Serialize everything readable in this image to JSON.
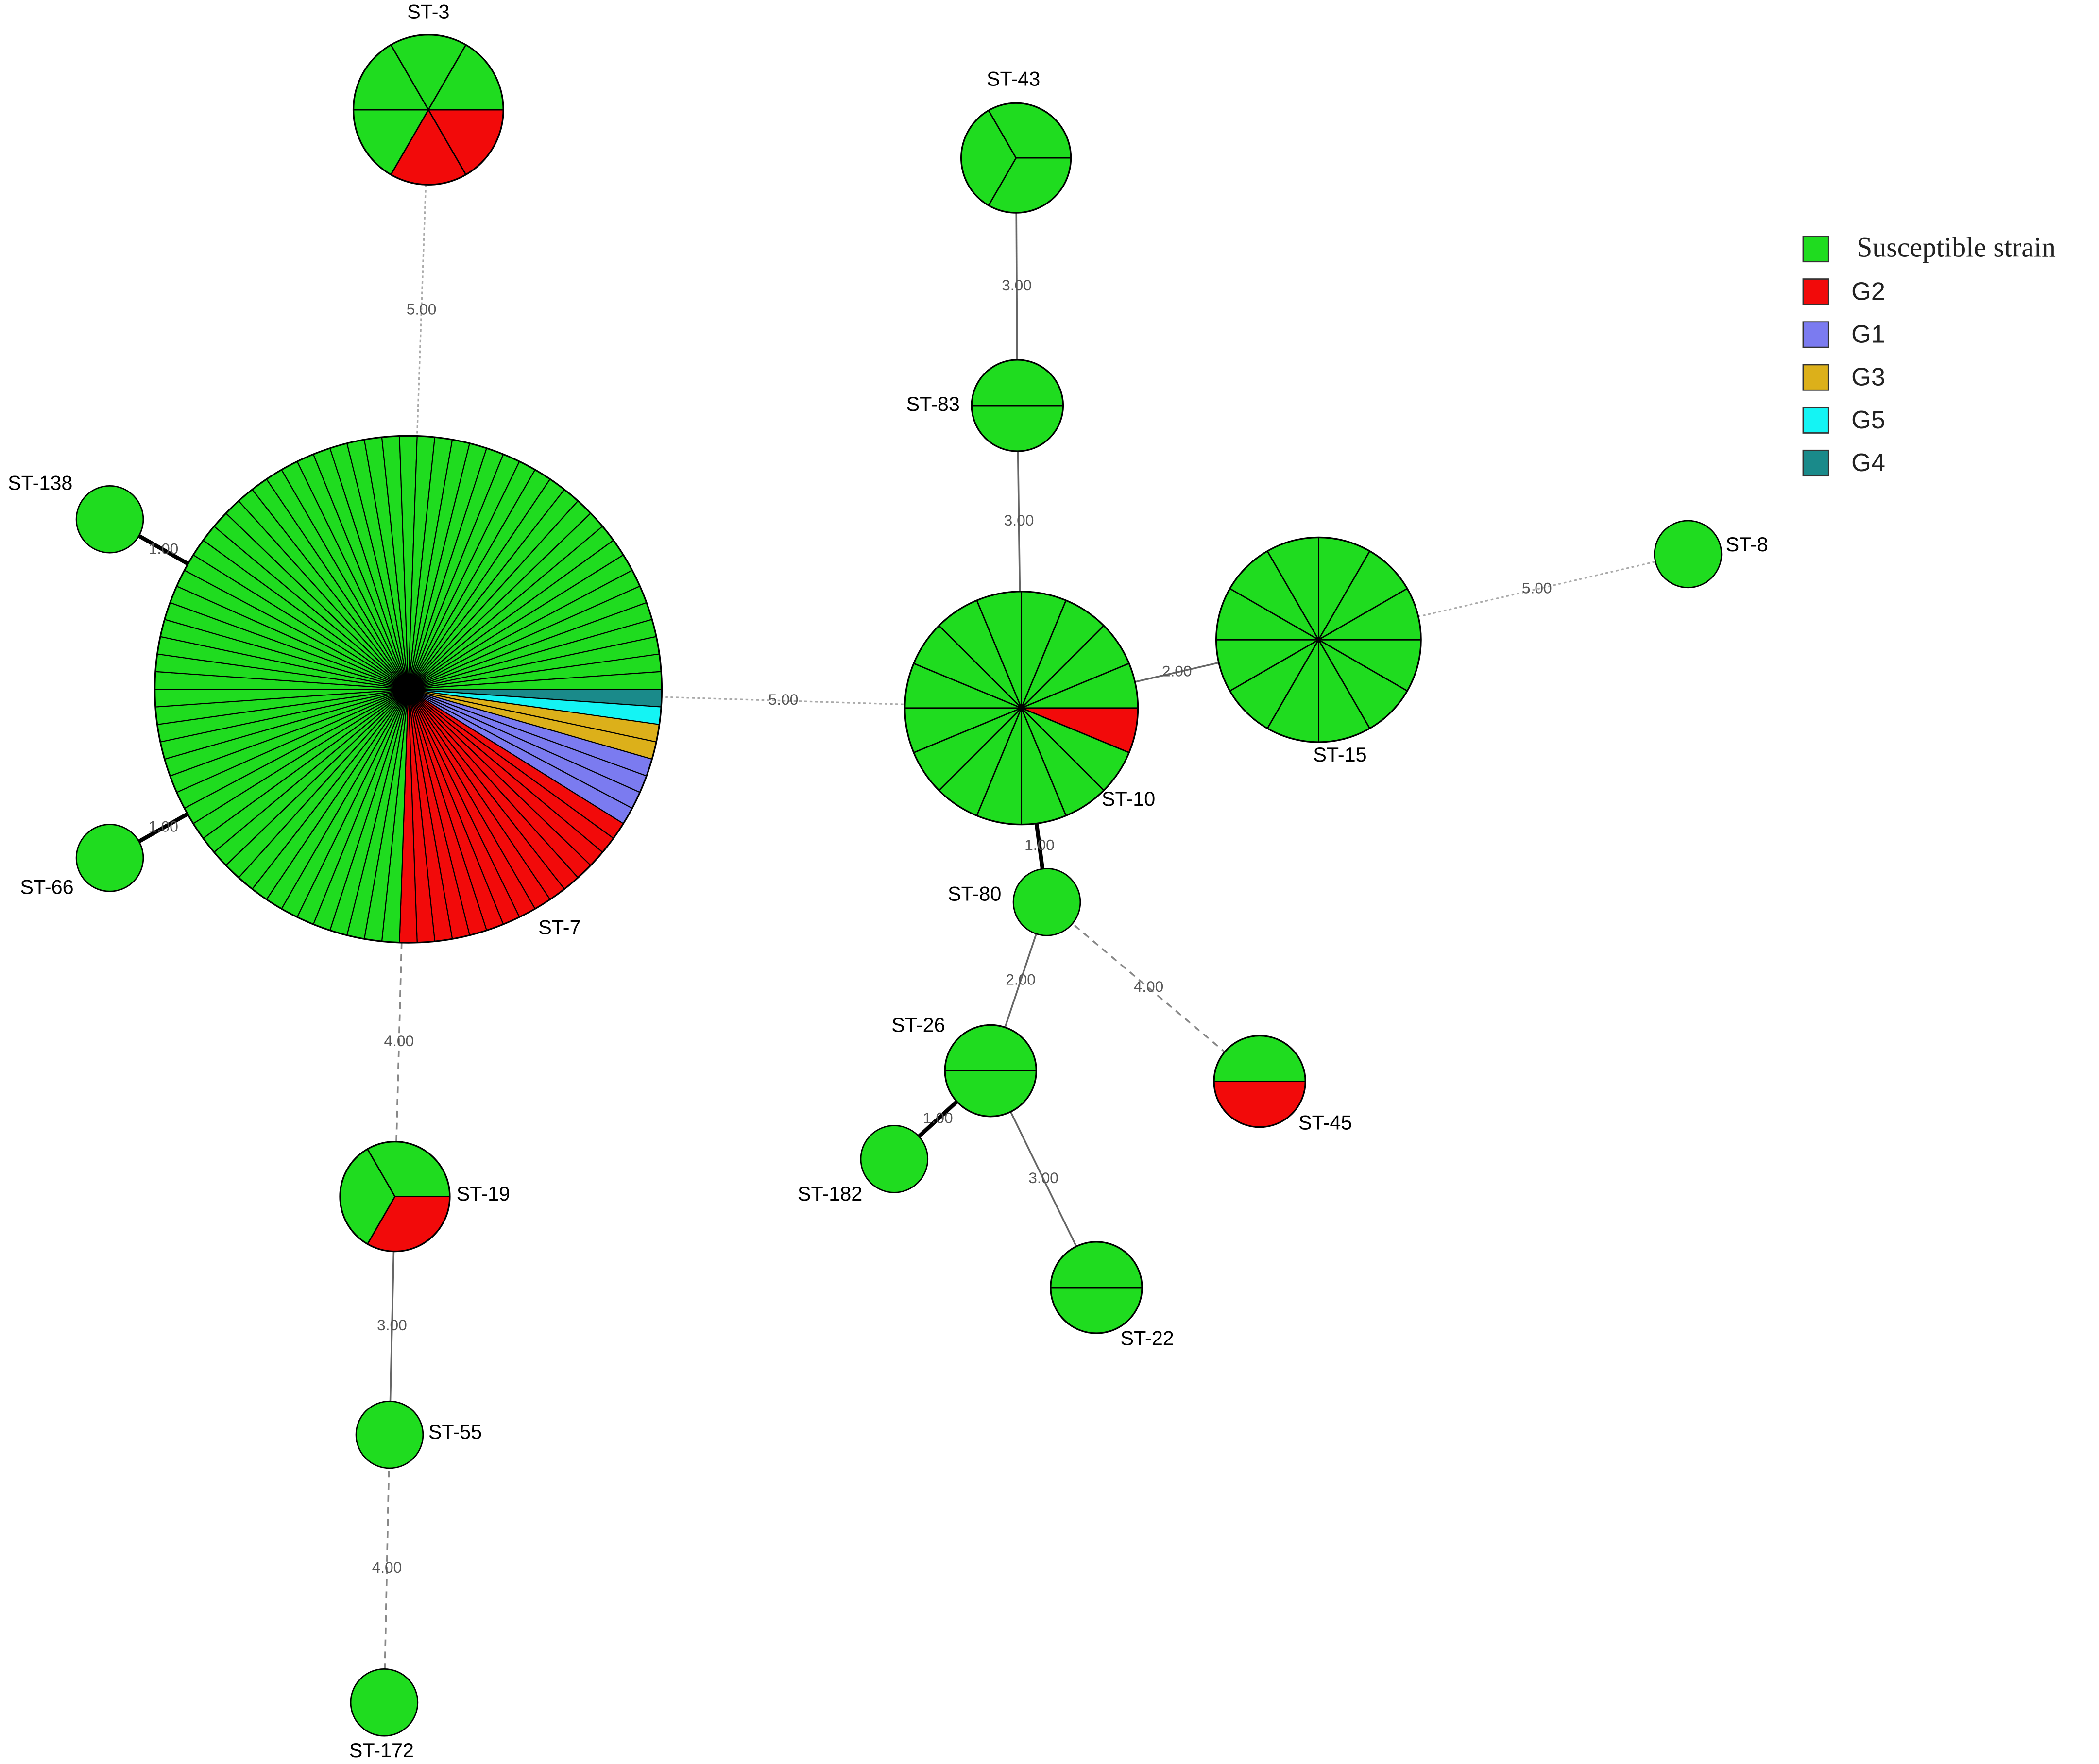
{
  "legend": [
    {
      "name": "Susceptible strain",
      "color": "#1fdc1f"
    },
    {
      "name": "G2",
      "color": "#f20a0a"
    },
    {
      "name": "G1",
      "color": "#7b7bf0"
    },
    {
      "name": "G3",
      "color": "#dcb01a"
    },
    {
      "name": "G5",
      "color": "#14f4f4"
    },
    {
      "name": "G4",
      "color": "#1a8a8a"
    }
  ],
  "nodes": [
    {
      "label": "ST-3",
      "counts": [
        4,
        2,
        0,
        0,
        0,
        0
      ]
    },
    {
      "label": "ST-43",
      "counts": [
        3,
        0,
        0,
        0,
        0,
        0
      ]
    },
    {
      "label": "ST-83",
      "counts": [
        2,
        0,
        0,
        0,
        0,
        0
      ]
    },
    {
      "label": "ST-7",
      "counts": [
        67,
        15,
        4,
        2,
        1,
        1
      ]
    },
    {
      "label": "ST-138",
      "counts": [
        1,
        0,
        0,
        0,
        0,
        0
      ]
    },
    {
      "label": "ST-66",
      "counts": [
        1,
        0,
        0,
        0,
        0,
        0
      ]
    },
    {
      "label": "ST-10",
      "counts": [
        15,
        1,
        0,
        0,
        0,
        0
      ]
    },
    {
      "label": "ST-15",
      "counts": [
        12,
        0,
        0,
        0,
        0,
        0
      ]
    },
    {
      "label": "ST-8",
      "counts": [
        1,
        0,
        0,
        0,
        0,
        0
      ]
    },
    {
      "label": "ST-80",
      "counts": [
        1,
        0,
        0,
        0,
        0,
        0
      ]
    },
    {
      "label": "ST-26",
      "counts": [
        2,
        0,
        0,
        0,
        0,
        0
      ]
    },
    {
      "label": "ST-45",
      "counts": [
        1,
        1,
        0,
        0,
        0,
        0
      ]
    },
    {
      "label": "ST-182",
      "counts": [
        1,
        0,
        0,
        0,
        0,
        0
      ]
    },
    {
      "label": "ST-22",
      "counts": [
        2,
        0,
        0,
        0,
        0,
        0
      ]
    },
    {
      "label": "ST-19",
      "counts": [
        2,
        1,
        0,
        0,
        0,
        0
      ]
    },
    {
      "label": "ST-55",
      "counts": [
        1,
        0,
        0,
        0,
        0,
        0
      ]
    },
    {
      "label": "ST-172",
      "counts": [
        1,
        0,
        0,
        0,
        0,
        0
      ]
    }
  ],
  "edges": [
    {
      "source": 0,
      "target": 3,
      "label": "5.00"
    },
    {
      "source": 1,
      "target": 2,
      "label": "3.00"
    },
    {
      "source": 2,
      "target": 6,
      "label": "3.00"
    },
    {
      "source": 3,
      "target": 6,
      "label": "5.00"
    },
    {
      "source": 6,
      "target": 7,
      "label": "2.00"
    },
    {
      "source": 7,
      "target": 8,
      "label": "5.00"
    },
    {
      "source": 4,
      "target": 3,
      "label": "1.00"
    },
    {
      "source": 5,
      "target": 3,
      "label": "1.00"
    },
    {
      "source": 6,
      "target": 9,
      "label": "1.00"
    },
    {
      "source": 9,
      "target": 10,
      "label": "2.00"
    },
    {
      "source": 9,
      "target": 11,
      "label": "4.00"
    },
    {
      "source": 10,
      "target": 12,
      "label": "1.00"
    },
    {
      "source": 10,
      "target": 13,
      "label": "3.00"
    },
    {
      "source": 3,
      "target": 14,
      "label": "4.00"
    },
    {
      "source": 14,
      "target": 15,
      "label": "3.00"
    },
    {
      "source": 15,
      "target": 16,
      "label": "4.00"
    }
  ]
}
